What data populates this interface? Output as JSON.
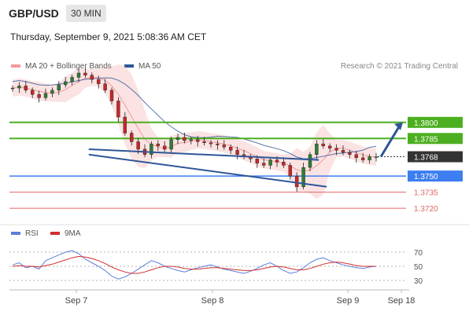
{
  "header": {
    "symbol": "GBP/USD",
    "timeframe": "30 MIN"
  },
  "datetime": "Thursday, September 9, 2021 5:08:36 AM CET",
  "legend": {
    "bb_label": "MA 20 + Bollinger Bands",
    "ma50_label": "MA 50",
    "credit": "Research © 2021 Trading Central"
  },
  "rsi_legend": {
    "rsi_label": "RSI",
    "ma_label": "9MA"
  },
  "colors": {
    "candle_up": "#2e7d32",
    "candle_down": "#c62828",
    "bb": "#f19a9a",
    "ma50": "#2f5597",
    "resistance": "#4caf1f",
    "support_blue": "#3d7ef0",
    "support_red": "#e06666",
    "current": "#333333",
    "rsi": "#5b7fdc",
    "rsi_ma": "#d32f2f"
  },
  "chart_data": [
    {
      "type": "candlestick",
      "x_tick_labels": [
        "Sep 7",
        "Sep 8",
        "Sep 9",
        "Sep 18"
      ],
      "ylim": [
        1.3712,
        1.3835
      ],
      "levels": [
        {
          "value": 1.38,
          "label": "1.3800",
          "kind": "resistance"
        },
        {
          "value": 1.3785,
          "label": "1.3785",
          "kind": "resistance"
        },
        {
          "value": 1.3768,
          "label": "1.3768",
          "kind": "current"
        },
        {
          "value": 1.375,
          "label": "1.3750",
          "kind": "support-blue"
        },
        {
          "value": 1.3735,
          "label": "1.3735",
          "kind": "support-red"
        },
        {
          "value": 1.372,
          "label": "1.3720",
          "kind": "support-red"
        }
      ],
      "close_path": [
        1.3832,
        1.3834,
        1.383,
        1.3826,
        1.3823,
        1.3827,
        1.383,
        1.3835,
        1.3838,
        1.3842,
        1.3846,
        1.3844,
        1.384,
        1.3836,
        1.383,
        1.382,
        1.3805,
        1.379,
        1.3782,
        1.3775,
        1.377,
        1.378,
        1.3778,
        1.3775,
        1.3784,
        1.3786,
        1.3783,
        1.3784,
        1.3782,
        1.3781,
        1.378,
        1.3779,
        1.3777,
        1.3774,
        1.377,
        1.3768,
        1.3766,
        1.3762,
        1.376,
        1.3765,
        1.3763,
        1.376,
        1.375,
        1.374,
        1.3758,
        1.377,
        1.378,
        1.3778,
        1.3776,
        1.3774,
        1.3772,
        1.377,
        1.3767,
        1.3765,
        1.3768,
        1.3768
      ],
      "channel": {
        "upper": [
          [
            0.2,
            1.3775
          ],
          [
            0.78,
            1.3765
          ]
        ],
        "lower": [
          [
            0.2,
            1.377
          ],
          [
            0.8,
            1.374
          ]
        ]
      },
      "projection_arrow": {
        "from_value": 1.3768,
        "to_value": 1.38
      }
    },
    {
      "type": "line",
      "title": "RSI",
      "y_tick_labels": [
        "70",
        "50",
        "30"
      ],
      "ylim": [
        20,
        80
      ],
      "series": [
        {
          "name": "RSI",
          "values": [
            52,
            55,
            48,
            50,
            46,
            58,
            62,
            66,
            70,
            72,
            68,
            60,
            55,
            50,
            44,
            36,
            32,
            35,
            40,
            46,
            52,
            58,
            55,
            50,
            47,
            44,
            42,
            45,
            48,
            50,
            52,
            49,
            46,
            44,
            42,
            40,
            43,
            47,
            52,
            55,
            50,
            44,
            40,
            42,
            48,
            55,
            60,
            62,
            58,
            55,
            52,
            50,
            48,
            47,
            49,
            50
          ]
        },
        {
          "name": "9MA",
          "values": [
            50,
            51,
            50,
            50,
            49,
            51,
            53,
            56,
            59,
            62,
            64,
            63,
            61,
            58,
            54,
            49,
            45,
            42,
            40,
            40,
            42,
            45,
            48,
            50,
            50,
            49,
            47,
            46,
            46,
            47,
            48,
            48,
            47,
            46,
            45,
            44,
            44,
            45,
            47,
            49,
            50,
            49,
            47,
            45,
            45,
            47,
            50,
            53,
            55,
            56,
            55,
            53,
            51,
            50,
            50,
            50
          ]
        }
      ]
    }
  ]
}
